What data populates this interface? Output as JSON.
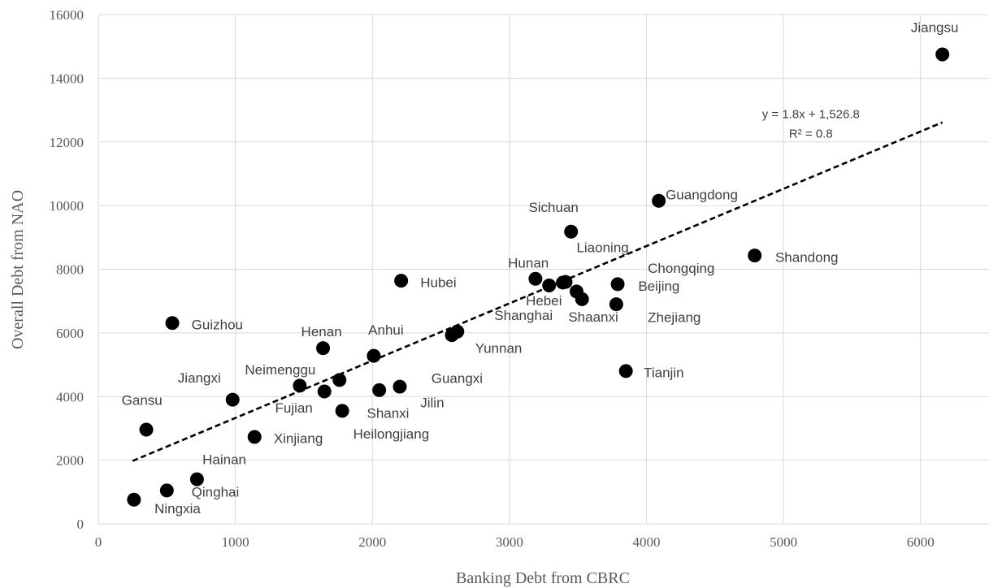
{
  "chart_data": {
    "type": "scatter",
    "xlabel": "Banking Debt from CBRC",
    "ylabel": "Overall Debt from NAO",
    "xlim": [
      0,
      6500
    ],
    "ylim": [
      0,
      16000
    ],
    "xticks": [
      0,
      1000,
      2000,
      3000,
      4000,
      5000,
      6000
    ],
    "yticks": [
      0,
      2000,
      4000,
      6000,
      8000,
      10000,
      12000,
      14000,
      16000
    ],
    "grid": true,
    "points": [
      {
        "name": "Jiangsu",
        "x": 6160,
        "y": 14750
      },
      {
        "name": "Guangdong",
        "x": 4090,
        "y": 10150
      },
      {
        "name": "Shandong",
        "x": 4790,
        "y": 8430
      },
      {
        "name": "Sichuan",
        "x": 3450,
        "y": 9180
      },
      {
        "name": "Liaoning",
        "x": 3490,
        "y": 7300
      },
      {
        "name": "Chongqing",
        "x": 3530,
        "y": 7060
      },
      {
        "name": "Beijing",
        "x": 3790,
        "y": 7530
      },
      {
        "name": "Zhejiang",
        "x": 3780,
        "y": 6900
      },
      {
        "name": "Hunan",
        "x": 3190,
        "y": 7700
      },
      {
        "name": "Hebei",
        "x": 3290,
        "y": 7490
      },
      {
        "name": "Shanghai",
        "x": 3390,
        "y": 7580
      },
      {
        "name": "Shaanxi",
        "x": 3410,
        "y": 7600
      },
      {
        "name": "Tianjin",
        "x": 3850,
        "y": 4800
      },
      {
        "name": "Yunnan",
        "x": 2580,
        "y": 5930
      },
      {
        "name": "Yunnan2",
        "x": 2620,
        "y": 6040
      },
      {
        "name": "Hubei",
        "x": 2210,
        "y": 7640
      },
      {
        "name": "Anhui",
        "x": 2010,
        "y": 5280
      },
      {
        "name": "Henan",
        "x": 1640,
        "y": 5520
      },
      {
        "name": "Guizhou",
        "x": 540,
        "y": 6310
      },
      {
        "name": "Guangxi",
        "x": 2200,
        "y": 4310
      },
      {
        "name": "Jilin",
        "x": 2050,
        "y": 4200
      },
      {
        "name": "Shanxi",
        "x": 1780,
        "y": 3550
      },
      {
        "name": "Neimenggu",
        "x": 1760,
        "y": 4520
      },
      {
        "name": "Fujian",
        "x": 1650,
        "y": 4160
      },
      {
        "name": "Heilongjiang",
        "x": 1470,
        "y": 4340
      },
      {
        "name": "Jiangxi",
        "x": 980,
        "y": 3900
      },
      {
        "name": "Xinjiang",
        "x": 1140,
        "y": 2730
      },
      {
        "name": "Gansu",
        "x": 350,
        "y": 2960
      },
      {
        "name": "Hainan",
        "x": 720,
        "y": 1400
      },
      {
        "name": "Qinghai",
        "x": 500,
        "y": 1050
      },
      {
        "name": "Ningxia",
        "x": 260,
        "y": 760
      }
    ],
    "labels": [
      {
        "text": "Jiangsu",
        "x": 5930,
        "y": 15450
      },
      {
        "text": "Guangdong",
        "x": 4140,
        "y": 10200
      },
      {
        "text": "Shandong",
        "x": 4940,
        "y": 8230
      },
      {
        "text": "Sichuan",
        "x": 3140,
        "y": 9800
      },
      {
        "text": "Liaoning",
        "x": 3490,
        "y": 8540
      },
      {
        "text": "Chongqing",
        "x": 4010,
        "y": 7880
      },
      {
        "text": "Beijing",
        "x": 3940,
        "y": 7330
      },
      {
        "text": "Zhejiang",
        "x": 4010,
        "y": 6340
      },
      {
        "text": "Hunan",
        "x": 2990,
        "y": 8050
      },
      {
        "text": "Hebei",
        "x": 3120,
        "y": 6870
      },
      {
        "text": "Shanghai",
        "x": 2890,
        "y": 6410
      },
      {
        "text": "Shaanxi",
        "x": 3430,
        "y": 6350
      },
      {
        "text": "Tianjin",
        "x": 3980,
        "y": 4600
      },
      {
        "text": "Yunnan",
        "x": 2750,
        "y": 5370
      },
      {
        "text": "Hubei",
        "x": 2350,
        "y": 7440
      },
      {
        "text": "Anhui",
        "x": 1970,
        "y": 5940
      },
      {
        "text": "Henan",
        "x": 1480,
        "y": 5900
      },
      {
        "text": "Guizhou",
        "x": 680,
        "y": 6110
      },
      {
        "text": "Guangxi",
        "x": 2430,
        "y": 4430
      },
      {
        "text": "Jilin",
        "x": 2350,
        "y": 3660
      },
      {
        "text": "Shanxi",
        "x": 1960,
        "y": 3330
      },
      {
        "text": "Neimenggu",
        "x": 1070,
        "y": 4690
      },
      {
        "text": "Fujian",
        "x": 1290,
        "y": 3500
      },
      {
        "text": "Heilongjiang",
        "x": 1860,
        "y": 2680
      },
      {
        "text": "Jiangxi",
        "x": 580,
        "y": 4440
      },
      {
        "text": "Xinjiang",
        "x": 1280,
        "y": 2540
      },
      {
        "text": "Gansu",
        "x": 170,
        "y": 3740
      },
      {
        "text": "Hainan",
        "x": 760,
        "y": 1870
      },
      {
        "text": "Qinghai",
        "x": 680,
        "y": 860
      },
      {
        "text": "Ningxia",
        "x": 410,
        "y": 330
      }
    ],
    "trendline": {
      "equation": "y = 1.8x + 1,526.8",
      "r2": "R² = 0.8",
      "x_start": 250,
      "x_end": 6160,
      "slope": 1.8,
      "intercept": 1526.8,
      "label_x": 5200,
      "label_y": 12750
    }
  }
}
